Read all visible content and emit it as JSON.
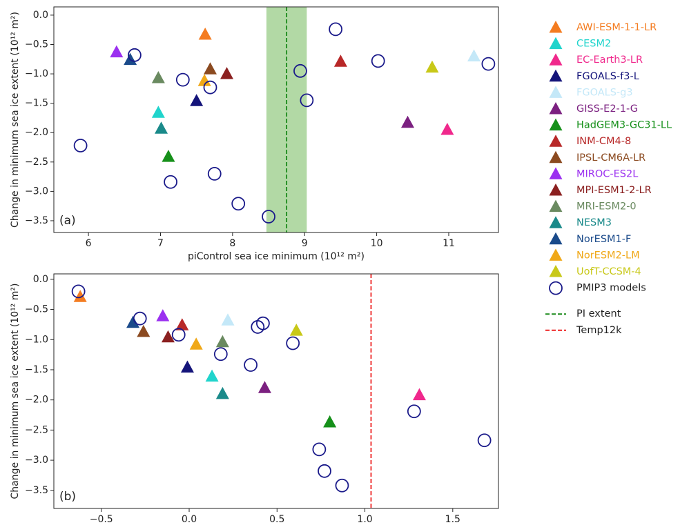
{
  "chart_data": [
    {
      "type": "scatter",
      "panel_label": "(a)",
      "x_label": "piControl sea ice minimum (10¹² m²)",
      "y_label": "Change in minimum sea ice extent (10¹² m²)",
      "xlim": [
        5.52,
        11.69
      ],
      "ylim": [
        -3.7,
        0.14
      ],
      "xticks": [
        6,
        7,
        8,
        9,
        10,
        11
      ],
      "yticks": [
        {
          "value": 0,
          "label": "0.0"
        },
        {
          "value": -0.5,
          "label": "−0.5"
        },
        {
          "value": -1,
          "label": "−1.0"
        },
        {
          "value": -1.5,
          "label": "−1.5"
        },
        {
          "value": -2,
          "label": "−2.0"
        },
        {
          "value": -2.5,
          "label": "−2.5"
        },
        {
          "value": -3,
          "label": "−3.0"
        },
        {
          "value": -3.5,
          "label": "−3.5"
        }
      ],
      "series": [
        {
          "name": "AWI-ESM-1-1-LR",
          "color": "#f47c20",
          "marker": "^",
          "x": [
            7.62
          ],
          "values": [
            -0.33
          ]
        },
        {
          "name": "CESM2",
          "color": "#20d4cc",
          "marker": "^",
          "x": [
            6.97
          ],
          "values": [
            -1.66
          ]
        },
        {
          "name": "EC-Earth3-LR",
          "color": "#f0288c",
          "marker": "^",
          "x": [
            10.98
          ],
          "values": [
            -1.95
          ]
        },
        {
          "name": "FGOALS-f3-L",
          "color": "#14147a",
          "marker": "^",
          "x": [
            7.5
          ],
          "values": [
            -1.46
          ]
        },
        {
          "name": "FGOALS-g3",
          "color": "#c4e8f8",
          "marker": "^",
          "x": [
            11.35
          ],
          "values": [
            -0.7
          ]
        },
        {
          "name": "GISS-E2-1-G",
          "color": "#7b2080",
          "marker": "^",
          "x": [
            10.43
          ],
          "values": [
            -1.83
          ]
        },
        {
          "name": "HadGEM3-GC31-LL",
          "color": "#16901a",
          "marker": "^",
          "x": [
            7.11
          ],
          "values": [
            -2.41
          ]
        },
        {
          "name": "INM-CM4-8",
          "color": "#b82828",
          "marker": "^",
          "x": [
            9.5
          ],
          "values": [
            -0.79
          ]
        },
        {
          "name": "IPSL-CM6A-LR",
          "color": "#8b4a20",
          "marker": "^",
          "x": [
            7.69
          ],
          "values": [
            -0.92
          ]
        },
        {
          "name": "MIROC-ES2L",
          "color": "#9b30f0",
          "marker": "^",
          "x": [
            6.39
          ],
          "values": [
            -0.63
          ]
        },
        {
          "name": "MPI-ESM1-2-LR",
          "color": "#8b2020",
          "marker": "^",
          "x": [
            7.92
          ],
          "values": [
            -1.0
          ]
        },
        {
          "name": "MRI-ESM2-0",
          "color": "#6a8a60",
          "marker": "^",
          "x": [
            6.97
          ],
          "values": [
            -1.07
          ]
        },
        {
          "name": "NESM3",
          "color": "#1a8a8a",
          "marker": "^",
          "x": [
            7.01
          ],
          "values": [
            -1.93
          ]
        },
        {
          "name": "NorESM1-F",
          "color": "#1a4a8a",
          "marker": "^",
          "x": [
            6.58
          ],
          "values": [
            -0.76
          ]
        },
        {
          "name": "NorESM2-LM",
          "color": "#f0a818",
          "marker": "^",
          "x": [
            7.61
          ],
          "values": [
            -1.12
          ]
        },
        {
          "name": "UofT-CCSM-4",
          "color": "#c8c818",
          "marker": "^",
          "x": [
            10.77
          ],
          "values": [
            -0.89
          ]
        },
        {
          "name": "PMIP3 models",
          "color": "#1a1a8a",
          "marker": "o",
          "x": [
            9.43,
            6.64,
            10.02,
            11.55,
            8.94,
            7.31,
            7.69,
            9.03,
            5.89,
            7.14,
            7.75,
            8.08,
            8.5
          ],
          "values": [
            -0.24,
            -0.68,
            -0.78,
            -0.83,
            -0.95,
            -1.1,
            -1.23,
            -1.45,
            -2.22,
            -2.84,
            -2.7,
            -3.21,
            -3.43
          ]
        }
      ],
      "vlines": [
        {
          "name": "PI extent",
          "x": 8.75,
          "color": "#1a8a1a",
          "band": [
            8.47,
            9.03
          ],
          "band_color": "#9fd08f"
        }
      ]
    },
    {
      "type": "scatter",
      "panel_label": "(b)",
      "x_label": "Change in Arctic temperature (°C)",
      "y_label": "Change in minimum sea ice extent (10¹² m²)",
      "xlim": [
        -0.77,
        1.76
      ],
      "ylim": [
        -3.8,
        0.09
      ],
      "xticks": [
        {
          "value": -0.5,
          "label": "−0.5"
        },
        {
          "value": 0,
          "label": "0.0"
        },
        {
          "value": 0.5,
          "label": "0.5"
        },
        {
          "value": 1,
          "label": "1.0"
        },
        {
          "value": 1.5,
          "label": "1.5"
        }
      ],
      "yticks": [
        {
          "value": 0,
          "label": "0.0"
        },
        {
          "value": -0.5,
          "label": "−0.5"
        },
        {
          "value": -1,
          "label": "−1.0"
        },
        {
          "value": -1.5,
          "label": "−1.5"
        },
        {
          "value": -2,
          "label": "−2.0"
        },
        {
          "value": -2.5,
          "label": "−2.5"
        },
        {
          "value": -3,
          "label": "−3.0"
        },
        {
          "value": -3.5,
          "label": "−3.5"
        }
      ],
      "series": [
        {
          "color": "#f47c20",
          "marker": "^",
          "x": [
            -0.62
          ],
          "values": [
            -0.29
          ]
        },
        {
          "color": "#20d4cc",
          "marker": "^",
          "x": [
            0.13
          ],
          "values": [
            -1.61
          ]
        },
        {
          "color": "#f0288c",
          "marker": "^",
          "x": [
            1.31
          ],
          "values": [
            -1.92
          ]
        },
        {
          "color": "#14147a",
          "marker": "^",
          "x": [
            -0.01
          ],
          "values": [
            -1.46
          ]
        },
        {
          "color": "#c4e8f8",
          "marker": "^",
          "x": [
            0.22
          ],
          "values": [
            -0.68
          ]
        },
        {
          "color": "#7b2080",
          "marker": "^",
          "x": [
            0.43
          ],
          "values": [
            -1.8
          ]
        },
        {
          "color": "#16901a",
          "marker": "^",
          "x": [
            0.8
          ],
          "values": [
            -2.37
          ]
        },
        {
          "color": "#b82828",
          "marker": "^",
          "x": [
            -0.04
          ],
          "values": [
            -0.76
          ]
        },
        {
          "color": "#8b4a20",
          "marker": "^",
          "x": [
            -0.26
          ],
          "values": [
            -0.87
          ]
        },
        {
          "color": "#9b30f0",
          "marker": "^",
          "x": [
            -0.15
          ],
          "values": [
            -0.61
          ]
        },
        {
          "color": "#8b2020",
          "marker": "^",
          "x": [
            -0.12
          ],
          "values": [
            -0.96
          ]
        },
        {
          "color": "#6a8a60",
          "marker": "^",
          "x": [
            0.19
          ],
          "values": [
            -1.04
          ]
        },
        {
          "color": "#1a8a8a",
          "marker": "^",
          "x": [
            0.19
          ],
          "values": [
            -1.9
          ]
        },
        {
          "color": "#1a4a8a",
          "marker": "^",
          "x": [
            -0.32
          ],
          "values": [
            -0.72
          ]
        },
        {
          "color": "#f0a818",
          "marker": "^",
          "x": [
            0.04
          ],
          "values": [
            -1.08
          ]
        },
        {
          "color": "#c8c818",
          "marker": "^",
          "x": [
            0.61
          ],
          "values": [
            -0.85
          ]
        },
        {
          "color": "#1a1a8a",
          "marker": "o",
          "x": [
            -0.63,
            -0.28,
            -0.06,
            0.42,
            0.39,
            0.59,
            0.18,
            0.35,
            1.28,
            0.74,
            0.77,
            0.87,
            1.68
          ],
          "values": [
            -0.2,
            -0.65,
            -0.92,
            -0.73,
            -0.79,
            -1.06,
            -1.24,
            -1.42,
            -2.19,
            -2.82,
            -3.18,
            -3.42,
            -2.67
          ]
        }
      ],
      "vlines": [
        {
          "name": "Temp12k",
          "x": 1.035,
          "color": "#ee2222"
        }
      ]
    }
  ]
}
